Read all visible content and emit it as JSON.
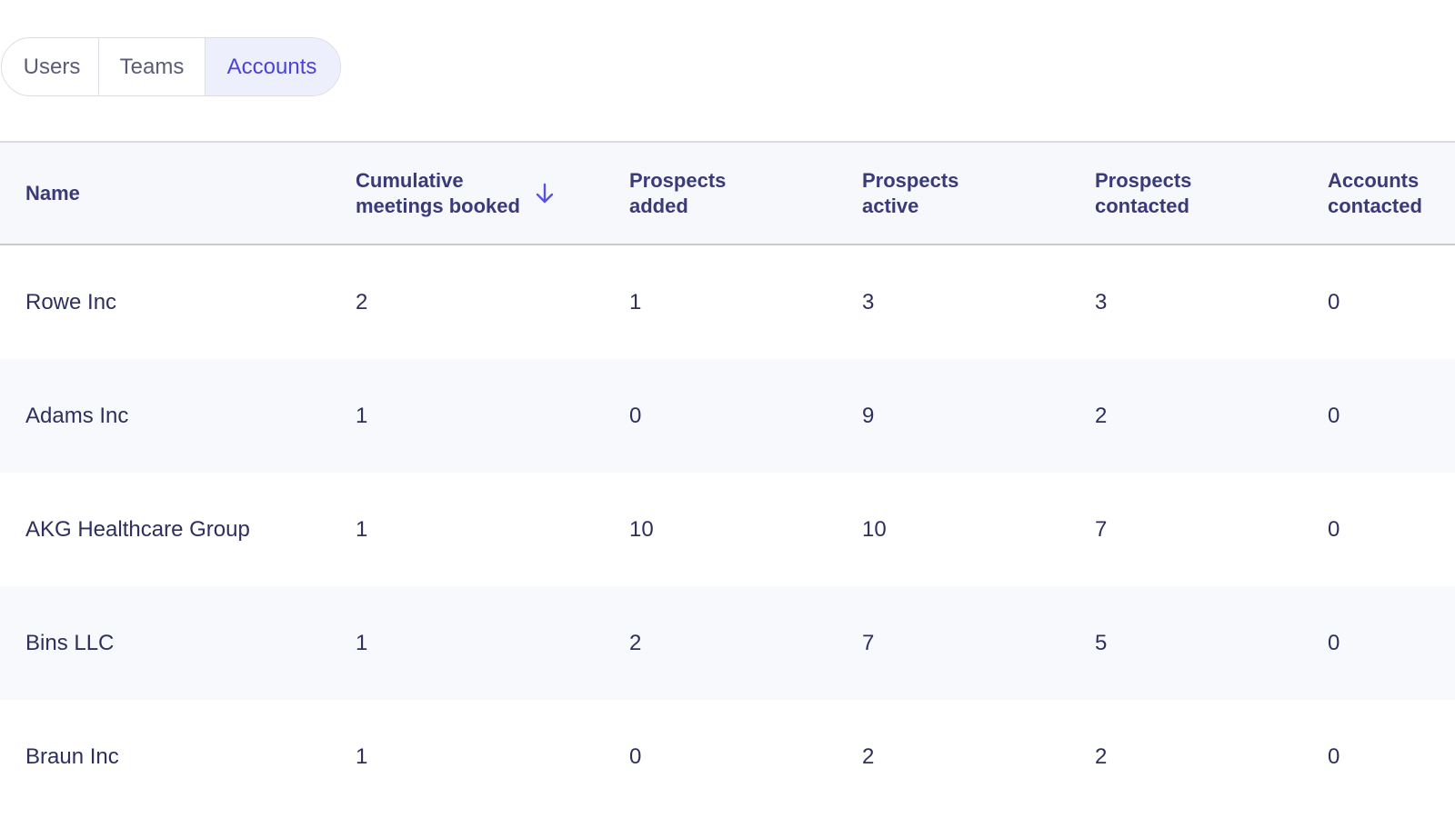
{
  "tabs": [
    {
      "label": "Users",
      "active": false
    },
    {
      "label": "Teams",
      "active": false
    },
    {
      "label": "Accounts",
      "active": true
    }
  ],
  "table": {
    "columns": [
      {
        "label": "Name"
      },
      {
        "label": "Cumulative\nmeetings booked",
        "sorted": "descending"
      },
      {
        "label": "Prospects\nadded"
      },
      {
        "label": "Prospects\nactive"
      },
      {
        "label": "Prospects\ncontacted"
      },
      {
        "label": "Accounts\ncontacted"
      }
    ],
    "rows": [
      [
        "Rowe Inc",
        "2",
        "1",
        "3",
        "3",
        "0"
      ],
      [
        "Adams Inc",
        "1",
        "0",
        "9",
        "2",
        "0"
      ],
      [
        "AKG Healthcare Group",
        "1",
        "10",
        "10",
        "7",
        "0"
      ],
      [
        "Bins LLC",
        "1",
        "2",
        "7",
        "5",
        "0"
      ],
      [
        "Braun Inc",
        "1",
        "0",
        "2",
        "2",
        "0"
      ]
    ]
  },
  "colors": {
    "accent": "#4b43d9",
    "tab_active_bg": "#eeeffd",
    "header_bg": "#f7f8fc",
    "row_alt_bg": "#f8f9fd",
    "text": "#2e2f5c"
  },
  "icons": {
    "sort": "arrow-down-icon"
  }
}
